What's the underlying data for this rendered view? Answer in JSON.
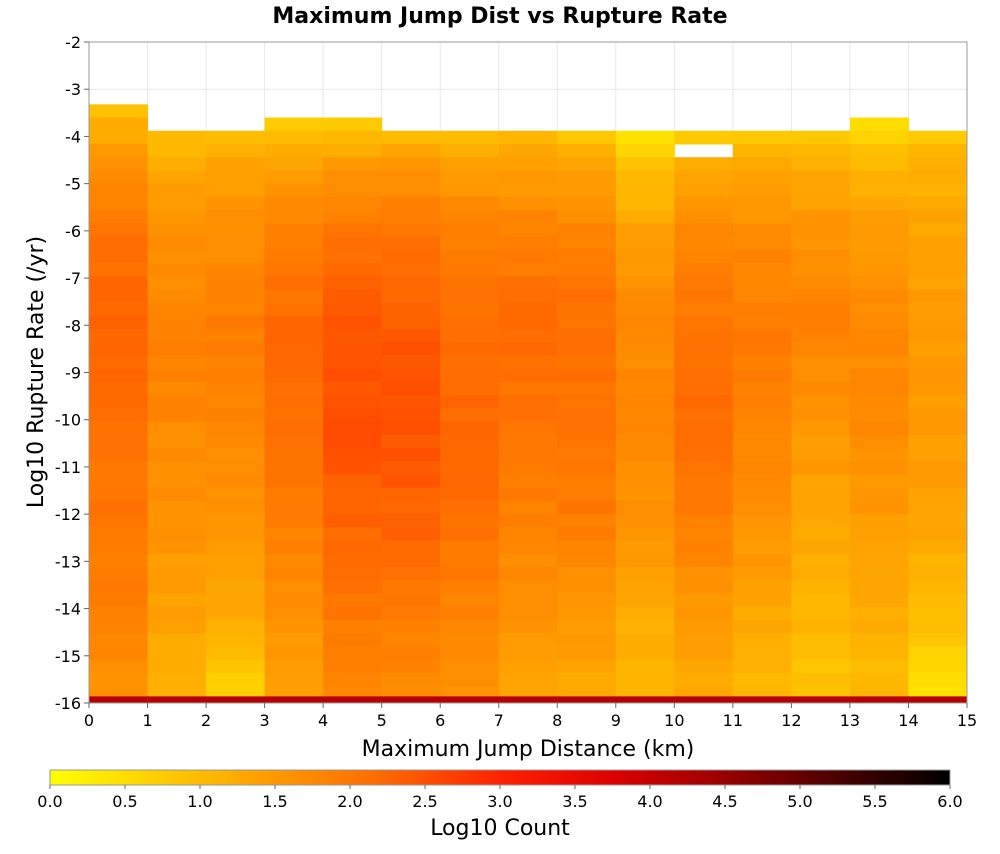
{
  "chart_data": {
    "type": "heatmap",
    "title": "Maximum Jump Dist vs Rupture Rate",
    "xlabel": "Maximum Jump Distance (km)",
    "ylabel": "Log10 Rupture Rate (/yr)",
    "xlim": [
      0,
      15
    ],
    "ylim": [
      -16,
      -2
    ],
    "x_ticks": [
      "0",
      "1",
      "2",
      "3",
      "4",
      "5",
      "6",
      "7",
      "8",
      "9",
      "10",
      "11",
      "12",
      "13",
      "14",
      "15"
    ],
    "y_ticks": [
      "-2",
      "-3",
      "-4",
      "-5",
      "-6",
      "-7",
      "-8",
      "-9",
      "-10",
      "-11",
      "-12",
      "-13",
      "-14",
      "-15",
      "-16"
    ],
    "grid": true,
    "y_bin_width": 0.28,
    "colorbar": {
      "label": "Log10 Count",
      "range": [
        0.0,
        6.0
      ],
      "ticks": [
        "0.0",
        "0.5",
        "1.0",
        "1.5",
        "2.0",
        "2.5",
        "3.0",
        "3.5",
        "4.0",
        "4.5",
        "5.0",
        "5.5",
        "6.0"
      ],
      "colormap": [
        "#ffff00",
        "#ffcc00",
        "#ff9900",
        "#ff6600",
        "#ff2200",
        "#dd0000",
        "#990000",
        "#4a0000",
        "#000000"
      ]
    },
    "columns": [
      {
        "x": [
          0,
          1
        ],
        "top": -3.32,
        "profile": [
          [
            -3.3,
            0.9
          ],
          [
            -4.5,
            1.6
          ],
          [
            -6.0,
            2.05
          ],
          [
            -8.0,
            2.25
          ],
          [
            -10.0,
            2.15
          ],
          [
            -12.0,
            2.0
          ],
          [
            -14.0,
            1.85
          ],
          [
            -15.7,
            1.6
          ]
        ]
      },
      {
        "x": [
          1,
          2
        ],
        "top": -3.88,
        "profile": [
          [
            -3.9,
            0.85
          ],
          [
            -4.5,
            1.25
          ],
          [
            -6.0,
            1.6
          ],
          [
            -8.0,
            1.85
          ],
          [
            -10.0,
            1.75
          ],
          [
            -12.0,
            1.6
          ],
          [
            -14.0,
            1.4
          ],
          [
            -15.7,
            1.1
          ]
        ]
      },
      {
        "x": [
          2,
          3
        ],
        "top": -3.88,
        "profile": [
          [
            -3.9,
            0.9
          ],
          [
            -4.5,
            1.3
          ],
          [
            -6.0,
            1.65
          ],
          [
            -8.0,
            1.9
          ],
          [
            -10.0,
            1.8
          ],
          [
            -12.0,
            1.55
          ],
          [
            -14.0,
            1.3
          ],
          [
            -15.7,
            0.7
          ]
        ]
      },
      {
        "x": [
          3,
          4
        ],
        "top": -3.6,
        "profile": [
          [
            -3.6,
            0.65
          ],
          [
            -4.5,
            1.35
          ],
          [
            -6.0,
            1.85
          ],
          [
            -8.0,
            2.2
          ],
          [
            -10.0,
            2.1
          ],
          [
            -12.0,
            1.9
          ],
          [
            -14.0,
            1.6
          ],
          [
            -15.7,
            1.4
          ]
        ]
      },
      {
        "x": [
          4,
          5
        ],
        "top": -3.6,
        "profile": [
          [
            -3.6,
            0.65
          ],
          [
            -4.5,
            1.45
          ],
          [
            -6.0,
            2.0
          ],
          [
            -8.0,
            2.45
          ],
          [
            -10.0,
            2.5
          ],
          [
            -12.0,
            2.3
          ],
          [
            -14.0,
            2.0
          ],
          [
            -15.7,
            1.7
          ]
        ]
      },
      {
        "x": [
          5,
          6
        ],
        "top": -3.88,
        "profile": [
          [
            -3.9,
            0.95
          ],
          [
            -4.5,
            1.45
          ],
          [
            -6.0,
            2.0
          ],
          [
            -8.0,
            2.4
          ],
          [
            -10.0,
            2.5
          ],
          [
            -12.0,
            2.3
          ],
          [
            -14.0,
            2.0
          ],
          [
            -15.7,
            1.7
          ]
        ]
      },
      {
        "x": [
          6,
          7
        ],
        "top": -3.88,
        "profile": [
          [
            -3.9,
            0.95
          ],
          [
            -4.5,
            1.35
          ],
          [
            -6.0,
            1.85
          ],
          [
            -8.0,
            2.2
          ],
          [
            -10.0,
            2.2
          ],
          [
            -12.0,
            2.1
          ],
          [
            -14.0,
            1.85
          ],
          [
            -15.7,
            1.6
          ]
        ]
      },
      {
        "x": [
          7,
          8
        ],
        "top": -3.88,
        "profile": [
          [
            -3.9,
            0.95
          ],
          [
            -4.5,
            1.35
          ],
          [
            -6.0,
            1.85
          ],
          [
            -8.0,
            2.2
          ],
          [
            -10.0,
            2.05
          ],
          [
            -12.0,
            1.85
          ],
          [
            -14.0,
            1.6
          ],
          [
            -15.7,
            1.35
          ]
        ]
      },
      {
        "x": [
          8,
          9
        ],
        "top": -3.88,
        "profile": [
          [
            -3.9,
            0.7
          ],
          [
            -4.5,
            1.3
          ],
          [
            -6.0,
            1.8
          ],
          [
            -8.0,
            2.15
          ],
          [
            -10.0,
            2.05
          ],
          [
            -12.0,
            1.95
          ],
          [
            -14.0,
            1.55
          ],
          [
            -15.7,
            1.3
          ]
        ]
      },
      {
        "x": [
          9,
          10
        ],
        "top": -3.88,
        "profile": [
          [
            -3.9,
            0.25
          ],
          [
            -4.5,
            0.85
          ],
          [
            -6.0,
            1.35
          ],
          [
            -8.0,
            1.75
          ],
          [
            -10.0,
            1.75
          ],
          [
            -12.0,
            1.6
          ],
          [
            -14.0,
            1.25
          ],
          [
            -15.7,
            1.05
          ]
        ]
      },
      {
        "x": [
          10,
          11
        ],
        "top": -3.88,
        "gap": [
          -4.15,
          -4.42
        ],
        "profile": [
          [
            -3.9,
            0.7
          ],
          [
            -4.5,
            1.25
          ],
          [
            -6.0,
            1.75
          ],
          [
            -8.0,
            2.05
          ],
          [
            -10.0,
            2.15
          ],
          [
            -12.0,
            1.9
          ],
          [
            -14.0,
            1.55
          ],
          [
            -15.7,
            1.25
          ]
        ]
      },
      {
        "x": [
          11,
          12
        ],
        "top": -3.88,
        "profile": [
          [
            -3.9,
            0.6
          ],
          [
            -4.5,
            1.2
          ],
          [
            -6.0,
            1.7
          ],
          [
            -8.0,
            1.95
          ],
          [
            -10.0,
            1.85
          ],
          [
            -12.0,
            1.6
          ],
          [
            -14.0,
            1.3
          ],
          [
            -15.7,
            1.1
          ]
        ]
      },
      {
        "x": [
          12,
          13
        ],
        "top": -3.88,
        "profile": [
          [
            -3.9,
            0.65
          ],
          [
            -4.5,
            1.15
          ],
          [
            -6.0,
            1.6
          ],
          [
            -8.0,
            1.85
          ],
          [
            -10.0,
            1.55
          ],
          [
            -12.0,
            1.35
          ],
          [
            -14.0,
            1.1
          ],
          [
            -15.7,
            0.85
          ]
        ]
      },
      {
        "x": [
          13,
          14
        ],
        "top": -3.6,
        "profile": [
          [
            -3.6,
            0.5
          ],
          [
            -4.5,
            1.0
          ],
          [
            -6.0,
            1.5
          ],
          [
            -8.0,
            1.75
          ],
          [
            -10.0,
            1.7
          ],
          [
            -12.0,
            1.5
          ],
          [
            -14.0,
            1.2
          ],
          [
            -15.7,
            1.0
          ]
        ]
      },
      {
        "x": [
          14,
          15
        ],
        "top": -3.88,
        "profile": [
          [
            -3.9,
            0.75
          ],
          [
            -4.5,
            1.1
          ],
          [
            -6.0,
            1.35
          ],
          [
            -8.0,
            1.5
          ],
          [
            -10.0,
            1.5
          ],
          [
            -12.0,
            1.35
          ],
          [
            -14.0,
            1.0
          ],
          [
            -15.7,
            0.4
          ]
        ]
      }
    ],
    "bottom_row": {
      "y": [
        -16.0,
        -15.86
      ],
      "value": 4.2
    }
  }
}
